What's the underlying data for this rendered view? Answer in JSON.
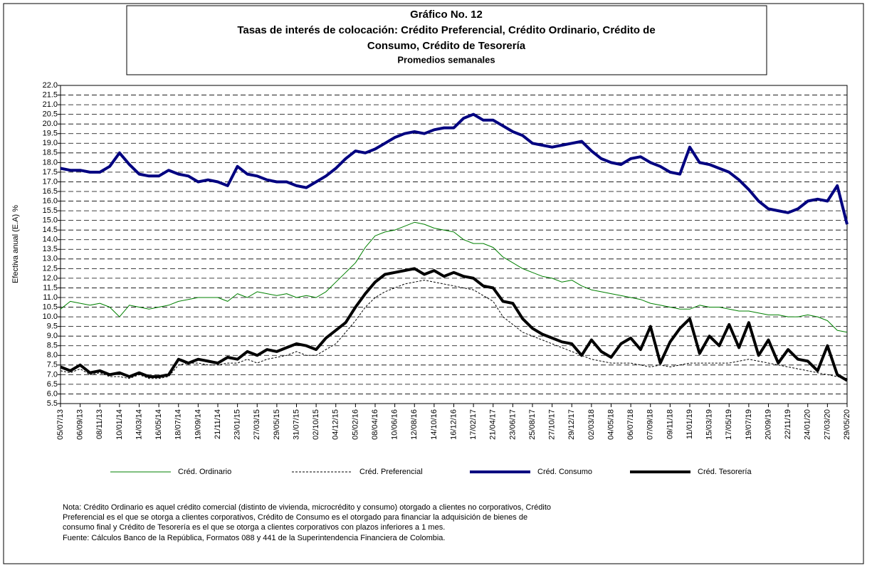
{
  "chart_data": {
    "type": "line",
    "title_lines": [
      "Gráfico No. 12",
      "Tasas de interés de colocación: Crédito Preferencial, Crédito Ordinario, Crédito de",
      "Consumo, Crédito de Tesorería",
      "Promedios semanales"
    ],
    "y_label": "Efectiva anual (E.A) %",
    "categories": [
      "05/07/13",
      null,
      "06/09/13",
      null,
      "08/11/13",
      null,
      "10/01/14",
      null,
      "14/03/14",
      null,
      "16/05/14",
      null,
      "18/07/14",
      null,
      "19/09/14",
      null,
      "21/11/14",
      null,
      "23/01/15",
      null,
      "27/03/15",
      null,
      "29/05/15",
      null,
      "31/07/15",
      null,
      "02/10/15",
      null,
      "04/12/15",
      null,
      "05/02/16",
      null,
      "08/04/16",
      null,
      "10/06/16",
      null,
      "12/08/16",
      null,
      "14/10/16",
      null,
      "16/12/16",
      null,
      "17/02/17",
      null,
      "21/04/17",
      null,
      "23/06/17",
      null,
      "25/08/17",
      null,
      "27/10/17",
      null,
      "29/12/17",
      null,
      "02/03/18",
      null,
      "04/05/18",
      null,
      "06/07/18",
      null,
      "07/09/18",
      null,
      "09/11/18",
      null,
      "11/01/19",
      null,
      "15/03/19",
      null,
      "17/05/19",
      null,
      "19/07/19",
      null,
      "20/09/19",
      null,
      "22/11/19",
      null,
      "24/01/20",
      null,
      "27/03/20",
      null,
      "29/05/20"
    ],
    "series": [
      {
        "name": "Créd. Ordinario",
        "color": "#008000",
        "line_style": "thin",
        "values": [
          10.4,
          10.8,
          10.7,
          10.6,
          10.7,
          10.5,
          10.0,
          10.6,
          10.5,
          10.4,
          10.5,
          10.6,
          10.8,
          10.9,
          11.0,
          11.0,
          11.0,
          10.8,
          11.2,
          11.0,
          11.3,
          11.2,
          11.1,
          11.2,
          11.0,
          11.1,
          11.0,
          11.3,
          11.8,
          12.3,
          12.8,
          13.6,
          14.2,
          14.4,
          14.5,
          14.7,
          14.9,
          14.8,
          14.6,
          14.5,
          14.4,
          14.0,
          13.8,
          13.8,
          13.6,
          13.1,
          12.8,
          12.5,
          12.3,
          12.1,
          12.0,
          11.8,
          11.9,
          11.6,
          11.4,
          11.3,
          11.2,
          11.1,
          11.0,
          10.9,
          10.7,
          10.6,
          10.5,
          10.4,
          10.4,
          10.6,
          10.5,
          10.5,
          10.4,
          10.3,
          10.3,
          10.2,
          10.1,
          10.1,
          10.0,
          10.0,
          10.1,
          10.0,
          9.8,
          9.3,
          9.2
        ]
      },
      {
        "name": "Créd. Preferencial",
        "color": "#000000",
        "line_style": "dashed",
        "values": [
          7.2,
          7.1,
          7.3,
          7.0,
          7.1,
          6.9,
          6.9,
          6.8,
          7.0,
          6.8,
          6.8,
          6.9,
          7.5,
          7.6,
          7.6,
          7.5,
          7.5,
          7.6,
          7.6,
          7.8,
          7.6,
          7.8,
          7.9,
          8.0,
          8.2,
          8.0,
          8.0,
          8.3,
          8.6,
          9.2,
          9.8,
          10.5,
          11.0,
          11.3,
          11.5,
          11.7,
          11.8,
          11.9,
          11.8,
          11.7,
          11.6,
          11.5,
          11.4,
          11.1,
          10.8,
          10.0,
          9.6,
          9.2,
          9.0,
          8.8,
          8.6,
          8.4,
          8.2,
          8.0,
          7.8,
          7.7,
          7.6,
          7.6,
          7.6,
          7.5,
          7.4,
          7.5,
          7.4,
          7.5,
          7.6,
          7.6,
          7.6,
          7.6,
          7.6,
          7.7,
          7.8,
          7.7,
          7.6,
          7.5,
          7.4,
          7.3,
          7.2,
          7.1,
          7.0,
          6.9,
          6.8
        ]
      },
      {
        "name": "Créd. Consumo",
        "color": "#000080",
        "line_style": "thick",
        "values": [
          17.7,
          17.6,
          17.6,
          17.5,
          17.5,
          17.8,
          18.5,
          17.9,
          17.4,
          17.3,
          17.3,
          17.6,
          17.4,
          17.3,
          17.0,
          17.1,
          17.0,
          16.8,
          17.8,
          17.4,
          17.3,
          17.1,
          17.0,
          17.0,
          16.8,
          16.7,
          17.0,
          17.3,
          17.7,
          18.2,
          18.6,
          18.5,
          18.7,
          19.0,
          19.3,
          19.5,
          19.6,
          19.5,
          19.7,
          19.8,
          19.8,
          20.3,
          20.5,
          20.2,
          20.2,
          19.9,
          19.6,
          19.4,
          19.0,
          18.9,
          18.8,
          18.9,
          19.0,
          19.1,
          18.6,
          18.2,
          18.0,
          17.9,
          18.2,
          18.3,
          18.0,
          17.8,
          17.5,
          17.4,
          18.8,
          18.0,
          17.9,
          17.7,
          17.5,
          17.1,
          16.6,
          16.0,
          15.6,
          15.5,
          15.4,
          15.6,
          16.0,
          16.1,
          16.0,
          16.8,
          14.8
        ]
      },
      {
        "name": "Créd. Tesorería",
        "color": "#000000",
        "line_style": "thick",
        "values": [
          7.4,
          7.2,
          7.5,
          7.1,
          7.2,
          7.0,
          7.1,
          6.9,
          7.1,
          6.9,
          6.9,
          7.0,
          7.8,
          7.6,
          7.8,
          7.7,
          7.6,
          7.9,
          7.8,
          8.2,
          8.0,
          8.3,
          8.2,
          8.4,
          8.6,
          8.5,
          8.3,
          8.9,
          9.3,
          9.7,
          10.5,
          11.2,
          11.8,
          12.2,
          12.3,
          12.4,
          12.5,
          12.2,
          12.4,
          12.1,
          12.3,
          12.1,
          12.0,
          11.6,
          11.5,
          10.8,
          10.7,
          9.9,
          9.4,
          9.1,
          8.9,
          8.7,
          8.6,
          8.0,
          8.8,
          8.2,
          7.9,
          8.6,
          8.9,
          8.3,
          9.5,
          7.6,
          8.7,
          9.4,
          9.9,
          8.1,
          9.0,
          8.5,
          9.6,
          8.4,
          9.7,
          8.0,
          8.8,
          7.6,
          8.3,
          7.8,
          7.7,
          7.2,
          8.5,
          7.0,
          6.7
        ]
      }
    ],
    "ylim": [
      5.5,
      22
    ],
    "yticks": [
      5.5,
      {
        "value": 6,
        "label": "6.0"
      },
      6.5,
      {
        "value": 7,
        "label": "7.0"
      },
      7.5,
      {
        "value": 8,
        "label": "8.0"
      },
      8.5,
      {
        "value": 9,
        "label": "9.0"
      },
      9.5,
      {
        "value": 10,
        "label": "10.0"
      },
      10.5,
      {
        "value": 11,
        "label": "11.0"
      },
      11.5,
      {
        "value": 12,
        "label": "12.0"
      },
      12.5,
      {
        "value": 13,
        "label": "13.0"
      },
      13.5,
      {
        "value": 14,
        "label": "14.0"
      },
      14.5,
      {
        "value": 15,
        "label": "15.0"
      },
      15.5,
      {
        "value": 16,
        "label": "16.0"
      },
      16.5,
      {
        "value": 17,
        "label": "17.0"
      },
      17.5,
      {
        "value": 18,
        "label": "18.0"
      },
      18.5,
      {
        "value": 19,
        "label": "19.0"
      },
      19.5,
      {
        "value": 20,
        "label": "20.0"
      },
      20.5,
      {
        "value": 21,
        "label": "21.0"
      },
      21.5,
      {
        "value": 22,
        "label": "22.0"
      }
    ],
    "grid": true,
    "legend": "bottom",
    "notes": [
      "Nota: Crédito Ordinario es aquel crédito comercial (distinto de vivienda, microcrédito y consumo) otorgado a clientes no corporativos, Crédito",
      "Preferencial es el que se otorga a clientes corporativos, Crédito de Consumo es el otorgado para financiar la adquisición de bienes de",
      "consumo final y Crédito de Tesorería es el que se otorga a clientes corporativos con plazos inferiores a 1 mes.",
      "Fuente: Cálculos Banco de la República, Formatos 088 y 441 de la Superintendencia Financiera de Colombia."
    ]
  }
}
